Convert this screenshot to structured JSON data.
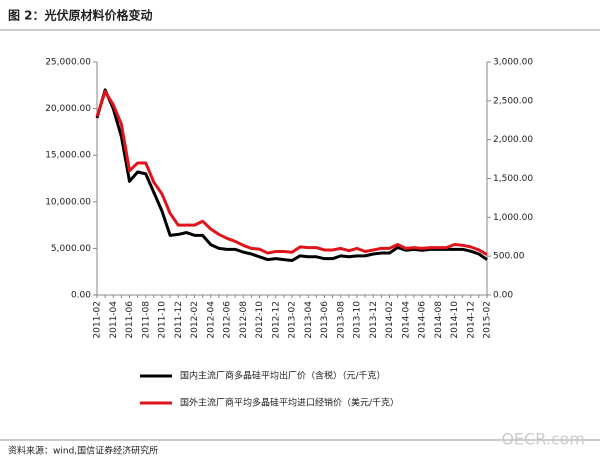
{
  "chart_data": {
    "type": "line",
    "title": "图 2：光伏原材料价格变动",
    "source": "资料来源：wind,国信证券经济研究所",
    "watermark": "OECR.com",
    "categories": [
      "2011-02",
      null,
      "2011-04",
      null,
      "2011-06",
      null,
      "2011-08",
      null,
      "2011-10",
      null,
      "2011-12",
      null,
      "2012-02",
      null,
      "2012-04",
      null,
      "2012-06",
      null,
      "2012-08",
      null,
      "2012-10",
      null,
      "2012-12",
      null,
      "2013-02",
      null,
      "2013-04",
      null,
      "2013-06",
      null,
      "2013-08",
      null,
      "2013-10",
      null,
      "2013-12",
      null,
      "2014-02",
      null,
      "2014-04",
      null,
      "2014-06",
      null,
      "2014-08",
      null,
      "2014-10",
      null,
      "2014-12",
      null,
      "2015-02"
    ],
    "series": [
      {
        "name": "国内主流厂商多晶硅平均出厂价（含税）（元/千克）",
        "color": "#000000",
        "axis": "y",
        "values": [
          19000,
          22000,
          20000,
          17000,
          12200,
          13200,
          13000,
          11000,
          9000,
          6400,
          6500,
          6700,
          6400,
          6400,
          5400,
          5000,
          4900,
          4900,
          4600,
          4400,
          4100,
          3800,
          3900,
          3800,
          3700,
          4200,
          4100,
          4100,
          3900,
          3900,
          4200,
          4100,
          4200,
          4200,
          4400,
          4500,
          4500,
          5100,
          4800,
          4900,
          4800,
          4900,
          4900,
          4900,
          4900,
          4900,
          4700,
          4400,
          3800
        ]
      },
      {
        "name": "国外主流厂商平均多晶硅平均进口经销价（美元/千克）",
        "color": "#e0151b",
        "axis": "y2",
        "values": [
          2300,
          2620,
          2450,
          2200,
          1600,
          1700,
          1700,
          1450,
          1300,
          1050,
          900,
          900,
          900,
          950,
          850,
          780,
          730,
          690,
          640,
          600,
          590,
          540,
          560,
          560,
          550,
          620,
          610,
          610,
          580,
          580,
          600,
          570,
          600,
          560,
          580,
          600,
          600,
          650,
          600,
          610,
          600,
          610,
          610,
          610,
          650,
          640,
          620,
          580,
          520
        ]
      }
    ],
    "ylim": [
      0,
      25000
    ],
    "yticks": [
      {
        "value": 0,
        "label": "0.00"
      },
      {
        "value": 5000,
        "label": "5,000.00"
      },
      {
        "value": 10000,
        "label": "10,000.00"
      },
      {
        "value": 15000,
        "label": "15,000.00"
      },
      {
        "value": 20000,
        "label": "20,000.00"
      },
      {
        "value": 25000,
        "label": "25,000.00"
      }
    ],
    "y2lim": [
      0,
      3000
    ],
    "y2ticks": [
      {
        "value": 0,
        "label": "0.00"
      },
      {
        "value": 500,
        "label": "500.00"
      },
      {
        "value": 1000,
        "label": "1,000.00"
      },
      {
        "value": 1500,
        "label": "1,500.00"
      },
      {
        "value": 2000,
        "label": "2,000.00"
      },
      {
        "value": 2500,
        "label": "2,500.00"
      },
      {
        "value": 3000,
        "label": "3,000.00"
      }
    ],
    "grid": false
  }
}
